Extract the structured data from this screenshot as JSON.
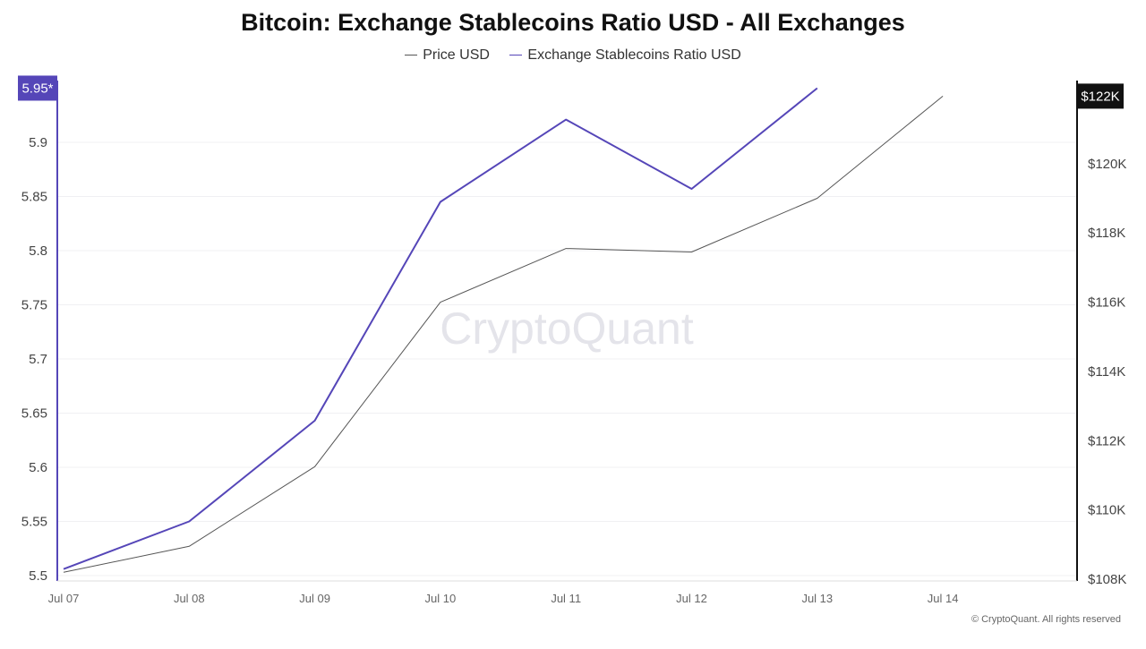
{
  "colors": {
    "ratio": "#5546b8",
    "price": "#555555",
    "left_axis": "#5546b8",
    "right_axis": "#111111",
    "grid": "#f0f0f3",
    "watermark": "#e4e4ea"
  },
  "watermark": "CryptoQuant",
  "footer": "© CryptoQuant. All rights reserved",
  "chart_data": {
    "type": "line",
    "title": "Bitcoin: Exchange Stablecoins Ratio USD - All Exchanges",
    "legend_placement": "top-center",
    "grid": true,
    "categories": [
      "Jul 07",
      "Jul 08",
      "Jul 09",
      "Jul 10",
      "Jul 11",
      "Jul 12",
      "Jul 13",
      "Jul 14"
    ],
    "series": [
      {
        "name": "Price USD",
        "axis": "right",
        "color": "#555555",
        "values": [
          108200,
          108950,
          111250,
          116000,
          117550,
          117450,
          119000,
          121950
        ]
      },
      {
        "name": "Exchange Stablecoins Ratio USD",
        "axis": "left",
        "color": "#5546b8",
        "values": [
          5.506,
          5.55,
          5.643,
          5.845,
          5.921,
          5.857,
          5.95,
          null
        ]
      }
    ],
    "left_axis": {
      "ticks": [
        5.5,
        5.55,
        5.6,
        5.65,
        5.7,
        5.75,
        5.8,
        5.85,
        5.9
      ],
      "tick_labels": [
        "5.5",
        "5.55",
        "5.6",
        "5.65",
        "5.7",
        "5.75",
        "5.8",
        "5.85",
        "5.9"
      ],
      "range": [
        5.495,
        5.957
      ],
      "current_label": "5.95*",
      "current_value": 5.95
    },
    "right_axis": {
      "ticks": [
        108000,
        110000,
        112000,
        114000,
        116000,
        118000,
        120000
      ],
      "tick_labels": [
        "$108K",
        "$110K",
        "$112K",
        "$114K",
        "$116K",
        "$118K",
        "$120K"
      ],
      "range": [
        107950,
        122400
      ],
      "current_label": "$122K",
      "current_value": 121950
    }
  }
}
